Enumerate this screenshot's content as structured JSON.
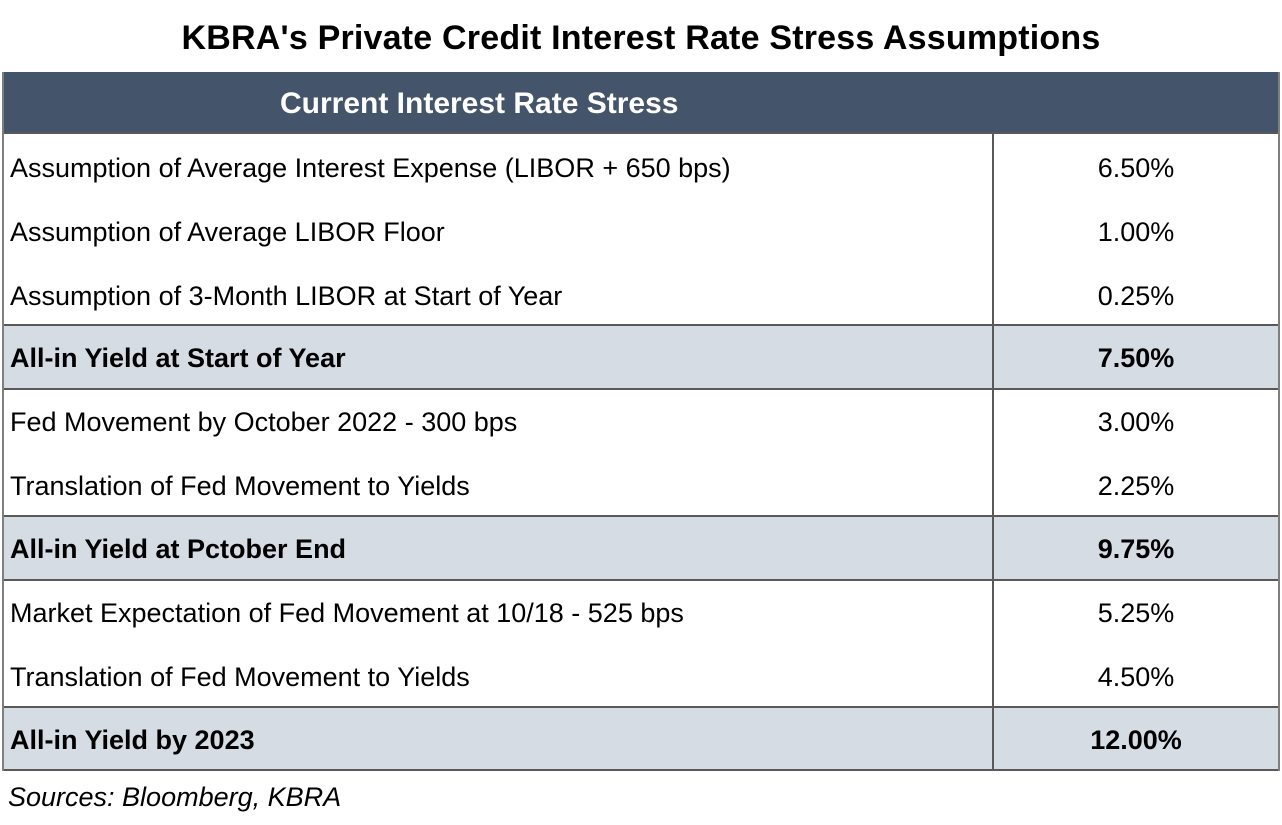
{
  "title": "KBRA's Private Credit Interest Rate Stress Assumptions",
  "table": {
    "header": "Current Interest Rate Stress",
    "groups": [
      {
        "rows": [
          {
            "label": "Assumption of Average Interest Expense (LIBOR + 650 bps)",
            "value": "6.50%"
          },
          {
            "label": "Assumption of Average LIBOR Floor",
            "value": "1.00%"
          },
          {
            "label": "Assumption of 3-Month LIBOR at Start of Year",
            "value": "0.25%"
          }
        ]
      },
      {
        "rows": [
          {
            "label": "All-in Yield at Start of Year",
            "value": "7.50%"
          }
        ]
      },
      {
        "rows": [
          {
            "label": "Fed Movement by October 2022 - 300 bps",
            "value": "3.00%"
          },
          {
            "label": "Translation of Fed Movement to Yields",
            "value": "2.25%"
          }
        ]
      },
      {
        "rows": [
          {
            "label": "All-in Yield at Pctober End",
            "value": "9.75%"
          }
        ]
      },
      {
        "rows": [
          {
            "label": "Market Expectation of Fed Movement at 10/18 - 525 bps",
            "value": "5.25%"
          },
          {
            "label": "Translation of Fed Movement to Yields",
            "value": "4.50%"
          }
        ]
      },
      {
        "rows": [
          {
            "label": "All-in Yield by 2023",
            "value": "12.00%"
          }
        ]
      }
    ]
  },
  "source": "Sources: Bloomberg, KBRA",
  "colors": {
    "header_bg": "#44546a",
    "shaded_row_bg": "#d6dce4",
    "border": "#595959"
  }
}
